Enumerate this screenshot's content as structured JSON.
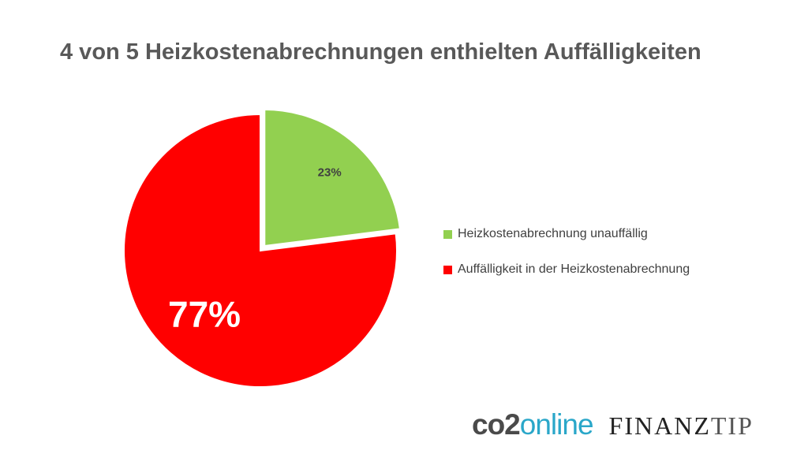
{
  "chart_data": {
    "type": "pie",
    "title": "4 von 5 Heizkostenabrechnungen enthielten Auffälligkeiten",
    "slices": [
      {
        "name": "Heizkostenabrechnung unauffällig",
        "value": 23,
        "label": "23%",
        "color": "#92d050",
        "exploded": true
      },
      {
        "name": "Auffälligkeit in der Heizkostenabrechnung",
        "value": 77,
        "label": "77%",
        "color": "#ff0000"
      }
    ],
    "legend_position": "right"
  },
  "logos": {
    "co2_part1": "co2",
    "co2_part2": "online",
    "finanz": "FINANZ",
    "tip": "TIP"
  }
}
